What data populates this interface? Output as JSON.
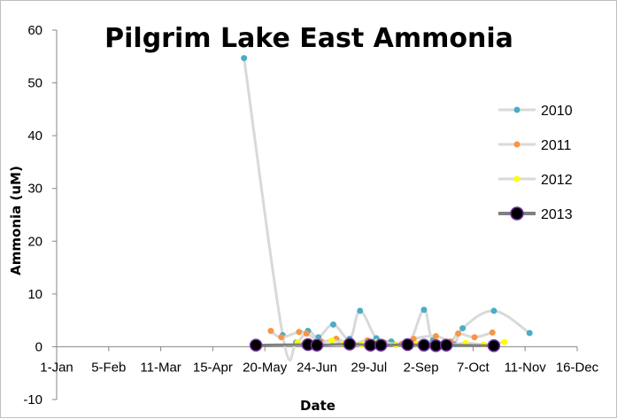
{
  "chart_data": {
    "type": "scatter",
    "title": "Pilgrim Lake East Ammonia",
    "xlabel": "Date",
    "ylabel": "Ammonia (uM)",
    "xlim": [
      0,
      350
    ],
    "ylim": [
      -10,
      60
    ],
    "x_ticks": [
      {
        "value": 0,
        "label": "1-Jan"
      },
      {
        "value": 35,
        "label": "5-Feb"
      },
      {
        "value": 70,
        "label": "11-Mar"
      },
      {
        "value": 105,
        "label": "15-Apr"
      },
      {
        "value": 140,
        "label": "20-May"
      },
      {
        "value": 175,
        "label": "24-Jun"
      },
      {
        "value": 210,
        "label": "29-Jul"
      },
      {
        "value": 245,
        "label": "2-Sep"
      },
      {
        "value": 280,
        "label": "7-Oct"
      },
      {
        "value": 315,
        "label": "11-Nov"
      },
      {
        "value": 350,
        "label": "16-Dec"
      }
    ],
    "y_ticks": [
      -10,
      0,
      10,
      20,
      30,
      40,
      50,
      60
    ],
    "legend_position": "right",
    "series": [
      {
        "name": "2010",
        "color": "#4bacc6",
        "line_color": "#d9d9d9",
        "marker": "small-dot",
        "x": [
          126,
          152,
          161,
          169,
          176,
          186,
          197,
          204,
          215,
          225,
          237,
          247,
          253,
          267,
          273,
          294,
          318
        ],
        "y": [
          54.7,
          2.2,
          0.8,
          3.0,
          1.8,
          4.2,
          1.5,
          6.8,
          1.6,
          1.0,
          0.8,
          7.0,
          1.2,
          0.5,
          3.5,
          6.8,
          2.6
        ]
      },
      {
        "name": "2011",
        "color": "#f79646",
        "line_color": "#d9d9d9",
        "marker": "small-dot",
        "x": [
          144,
          151,
          163,
          168,
          178,
          188,
          198,
          209,
          220,
          232,
          240,
          255,
          265,
          270,
          281,
          293
        ],
        "y": [
          3.0,
          1.8,
          2.8,
          2.5,
          1.0,
          1.5,
          0.5,
          1.2,
          0.8,
          0.5,
          1.5,
          2.0,
          1.0,
          2.5,
          1.8,
          2.7
        ]
      },
      {
        "name": "2012",
        "color": "#ffff00",
        "line_color": "#d9d9d9",
        "marker": "small-dot",
        "x": [
          162,
          175,
          185,
          193,
          205,
          215,
          228,
          242,
          250,
          262,
          275,
          287,
          301
        ],
        "y": [
          0.8,
          0.5,
          1.2,
          0.6,
          0.4,
          0.9,
          0.3,
          0.6,
          0.5,
          0.2,
          0.7,
          0.4,
          0.9
        ]
      },
      {
        "name": "2013",
        "color": "#000000",
        "line_color": "#808080",
        "marker": "large-circle",
        "x": [
          134,
          169,
          175,
          197,
          211,
          218,
          236,
          247,
          255,
          262,
          294
        ],
        "y": [
          0.3,
          0.4,
          0.3,
          0.5,
          0.3,
          0.3,
          0.4,
          0.3,
          0.2,
          0.3,
          0.2
        ]
      }
    ]
  }
}
